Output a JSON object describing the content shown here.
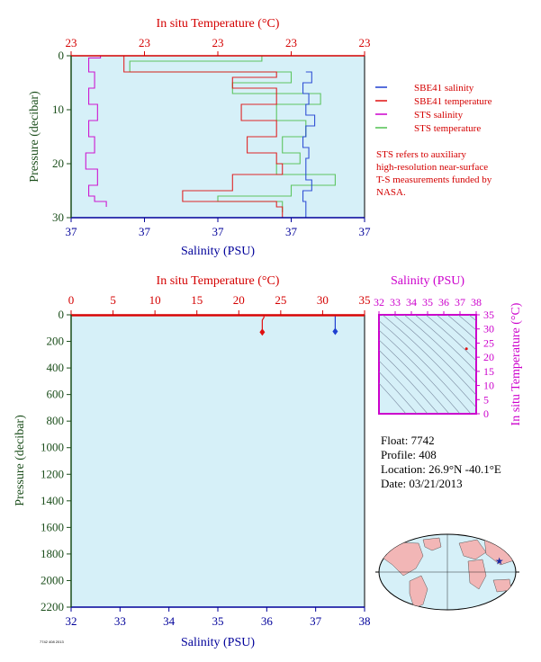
{
  "colors": {
    "temperature_axis": "#d40000",
    "salinity_axis": "#00009a",
    "ts_axis": "#cc00cc",
    "pressure_axis": "#1a4d1a",
    "plot_bg": "#d6f0f8",
    "land": "#f2b6b6",
    "sbe41_salinity": "#1f3fd0",
    "sbe41_temperature": "#e01010",
    "sts_salinity": "#cc00cc",
    "sts_temperature": "#50c050"
  },
  "chart_data": [
    {
      "type": "line",
      "panel": "near-surface profile",
      "top_axis_label": "In situ Temperature (°C)",
      "top_ticks": [
        "23",
        "23",
        "23",
        "23",
        "23"
      ],
      "bottom_axis_label": "Salinity (PSU)",
      "bottom_ticks": [
        "37",
        "37",
        "37",
        "37",
        "37"
      ],
      "ylabel": "Pressure (decibar)",
      "y_ticks": [
        0,
        10,
        20,
        30
      ],
      "ylim": [
        0,
        30
      ],
      "grid": false,
      "legend_position": "right",
      "legend": [
        {
          "label": "SBE41 salinity",
          "color": "#1f3fd0"
        },
        {
          "label": "SBE41 temperature",
          "color": "#e01010"
        },
        {
          "label": "STS salinity",
          "color": "#cc00cc"
        },
        {
          "label": "STS temperature",
          "color": "#50c050"
        }
      ],
      "note": "STS refers to auxiliary high-resolution near-surface T-S measurements funded by NASA.",
      "series": [
        {
          "name": "SBE41 salinity",
          "x_frac": [
            0.8,
            0.82,
            0.79,
            0.81,
            0.8,
            0.83,
            0.8,
            0.79,
            0.81,
            0.8,
            0.8,
            0.82,
            0.79,
            0.8
          ],
          "p": [
            3,
            5,
            7,
            9,
            11,
            13,
            15,
            17,
            19,
            21,
            23,
            25,
            27,
            30
          ]
        },
        {
          "name": "SBE41 temperature",
          "x_frac": [
            1.0,
            0.18,
            0.7,
            0.55,
            0.7,
            0.58,
            0.7,
            0.6,
            0.7,
            0.72,
            0.55,
            0.38,
            0.7,
            0.72
          ],
          "p": [
            0,
            3,
            4,
            6,
            9,
            12,
            15,
            18,
            20,
            22,
            25,
            27,
            28,
            30
          ]
        },
        {
          "name": "STS salinity",
          "x_frac": [
            0.95,
            0.1,
            0.06,
            0.08,
            0.06,
            0.09,
            0.06,
            0.08,
            0.05,
            0.09,
            0.06,
            0.08,
            0.12
          ],
          "p": [
            0,
            0.4,
            3,
            6,
            9,
            12,
            15,
            18,
            21,
            24,
            26,
            27,
            28
          ]
        },
        {
          "name": "STS temperature",
          "x_frac": [
            1.0,
            0.65,
            0.2,
            0.75,
            0.55,
            0.85,
            0.7,
            0.8,
            0.72,
            0.78,
            0.7,
            0.9,
            0.75,
            0.5,
            0.72
          ],
          "p": [
            0,
            1,
            3,
            5,
            7,
            9,
            12,
            15,
            18,
            20,
            22,
            24,
            26,
            27,
            29
          ]
        }
      ]
    },
    {
      "type": "line",
      "panel": "full-depth profile",
      "top_axis_label": "In situ Temperature (°C)",
      "top_ticks": [
        0,
        5,
        10,
        15,
        20,
        25,
        30,
        35
      ],
      "xlim_temperature": [
        0,
        35
      ],
      "bottom_axis_label": "Salinity (PSU)",
      "bottom_ticks": [
        32,
        33,
        34,
        35,
        36,
        37,
        38
      ],
      "xlim_salinity": [
        32,
        38
      ],
      "ylabel": "Pressure (decibar)",
      "y_ticks": [
        0,
        200,
        400,
        600,
        800,
        1000,
        1200,
        1400,
        1600,
        1800,
        2000,
        2200
      ],
      "ylim": [
        0,
        2200
      ],
      "grid": false,
      "series": [
        {
          "name": "SBE41 temperature",
          "temperature": [
            23,
            23,
            22.8,
            22.8
          ],
          "p": [
            0,
            20,
            40,
            130
          ]
        },
        {
          "name": "SBE41 salinity",
          "salinity": [
            37.4,
            37.4,
            37.4,
            37.4
          ],
          "p": [
            0,
            20,
            40,
            125
          ]
        }
      ]
    },
    {
      "type": "scatter",
      "panel": "T-S diagram",
      "top_axis_label": "Salinity (PSU)",
      "top_ticks": [
        32,
        33,
        34,
        35,
        36,
        37,
        38
      ],
      "xlim": [
        32,
        38
      ],
      "right_axis_label": "In situ Temperature (°C)",
      "right_ticks": [
        0,
        5,
        10,
        15,
        20,
        25,
        30,
        35
      ],
      "ylim": [
        0,
        35
      ],
      "points": [
        {
          "salinity": 37.4,
          "temperature": 23
        }
      ]
    }
  ],
  "info": {
    "float": "Float:  7742",
    "profile": "Profile:  408",
    "location": "Location:  26.9°N  -40.1°E",
    "date": "Date:  03/21/2013"
  },
  "map": {
    "marker_lat": 26.9,
    "marker_lon": -40.1
  },
  "footer": "7742 408 2013"
}
